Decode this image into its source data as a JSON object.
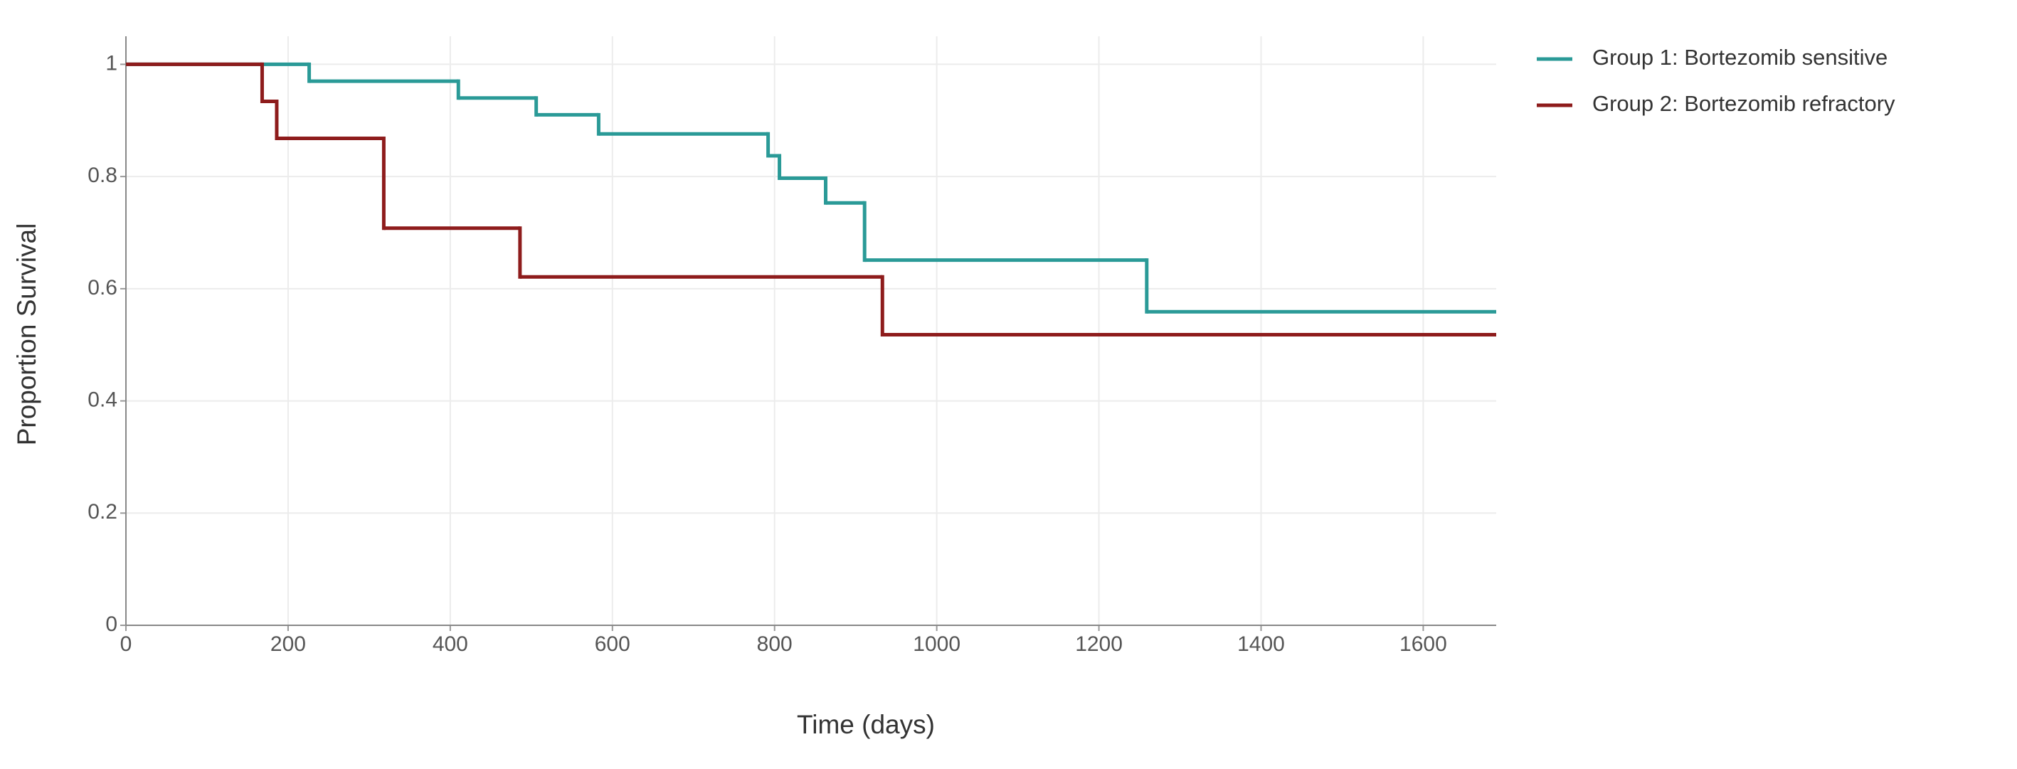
{
  "chart_data": {
    "type": "step",
    "x_label": "Time (days)",
    "y_label": "Proportion Survival",
    "xlim": [
      0,
      1690
    ],
    "ylim": [
      0,
      1.05
    ],
    "xticks": [
      0,
      200,
      400,
      600,
      800,
      1000,
      1200,
      1400,
      1600
    ],
    "yticks": [
      0,
      0.2,
      0.4,
      0.6,
      0.8,
      1
    ],
    "grid": true,
    "legend": "outside-right",
    "series": [
      {
        "name": "Group 1: Bortezomib sensitive",
        "color": "#2a9a97",
        "x": [
          0,
          226,
          410,
          506,
          583,
          792,
          806,
          863,
          911,
          1259,
          1690
        ],
        "values": [
          1,
          0.97,
          0.94,
          0.91,
          0.876,
          0.837,
          0.797,
          0.753,
          0.651,
          0.559,
          0.559
        ]
      },
      {
        "name": "Group 2: Bortezomib refractory",
        "color": "#8e1c1c",
        "x": [
          0,
          168,
          186,
          318,
          486,
          933,
          1690
        ],
        "values": [
          1,
          0.934,
          0.868,
          0.708,
          0.621,
          0.518,
          0.518
        ]
      }
    ]
  }
}
